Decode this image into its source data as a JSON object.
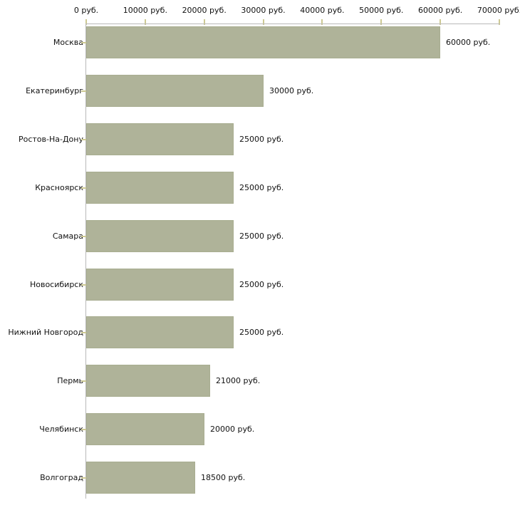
{
  "chart_data": {
    "type": "bar",
    "orientation": "horizontal",
    "title": "",
    "xlabel": "",
    "ylabel": "",
    "categories": [
      "Москва",
      "Екатеринбург",
      "Ростов-На-Дону",
      "Красноярск",
      "Самара",
      "Новосибирск",
      "Нижний Новгород",
      "Пермь",
      "Челябинск",
      "Волгоград"
    ],
    "values": [
      60000,
      30000,
      25000,
      25000,
      25000,
      25000,
      25000,
      21000,
      20000,
      18500
    ],
    "value_labels": [
      "60000 руб.",
      "30000 руб.",
      "25000 руб.",
      "25000 руб.",
      "25000 руб.",
      "25000 руб.",
      "25000 руб.",
      "21000 руб.",
      "20000 руб.",
      "18500 руб."
    ],
    "xlim": [
      0,
      70000
    ],
    "x_tick_values": [
      0,
      10000,
      20000,
      30000,
      40000,
      50000,
      60000,
      70000
    ],
    "x_tick_labels": [
      "0 руб.",
      "10000 руб.",
      "20000 руб.",
      "30000 руб.",
      "40000 руб.",
      "50000 руб.",
      "60000 руб.",
      "70000 руб."
    ],
    "grid": false,
    "legend": false,
    "colors": {
      "bar_fill": "#afb399",
      "bar_border": "#a8ad90",
      "axis_line": "#b9b9b9",
      "tick_mark": "#cdc993",
      "text": "#111111",
      "background": "#ffffff"
    }
  }
}
